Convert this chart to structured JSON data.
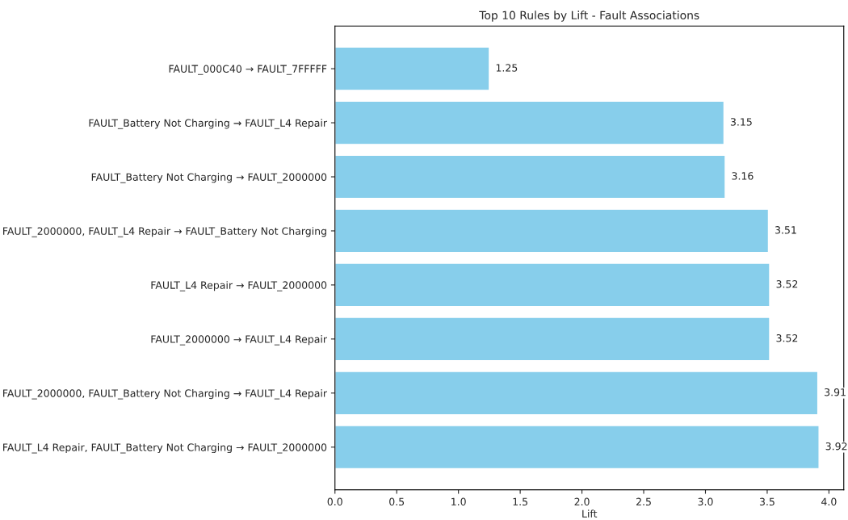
{
  "chart_data": {
    "type": "bar",
    "orientation": "horizontal",
    "title": "Top 10 Rules by Lift - Fault Associations",
    "xlabel": "Lift",
    "categories": [
      "FAULT_000C40 → FAULT_7FFFFF",
      "FAULT_Battery Not Charging → FAULT_L4 Repair",
      "FAULT_Battery Not Charging → FAULT_2000000",
      "FAULT_2000000, FAULT_L4 Repair → FAULT_Battery Not Charging",
      "FAULT_L4 Repair → FAULT_2000000",
      "FAULT_2000000 → FAULT_L4 Repair",
      "FAULT_2000000, FAULT_Battery Not Charging → FAULT_L4 Repair",
      "FAULT_L4 Repair, FAULT_Battery Not Charging → FAULT_2000000"
    ],
    "values": [
      1.25,
      3.15,
      3.16,
      3.51,
      3.52,
      3.52,
      3.91,
      3.92
    ],
    "color": "#87ceeb",
    "xlim": [
      0,
      4.12
    ],
    "xticks": [
      {
        "value": 0,
        "label": "0.0"
      },
      {
        "value": 0.5,
        "label": "0.5"
      },
      {
        "value": 1,
        "label": "1.0"
      },
      {
        "value": 1.5,
        "label": "1.5"
      },
      {
        "value": 2,
        "label": "2.0"
      },
      {
        "value": 2.5,
        "label": "2.5"
      },
      {
        "value": 3,
        "label": "3.0"
      },
      {
        "value": 3.5,
        "label": "3.5"
      },
      {
        "value": 4,
        "label": "4.0"
      }
    ],
    "data_labels": true,
    "grid": false
  }
}
